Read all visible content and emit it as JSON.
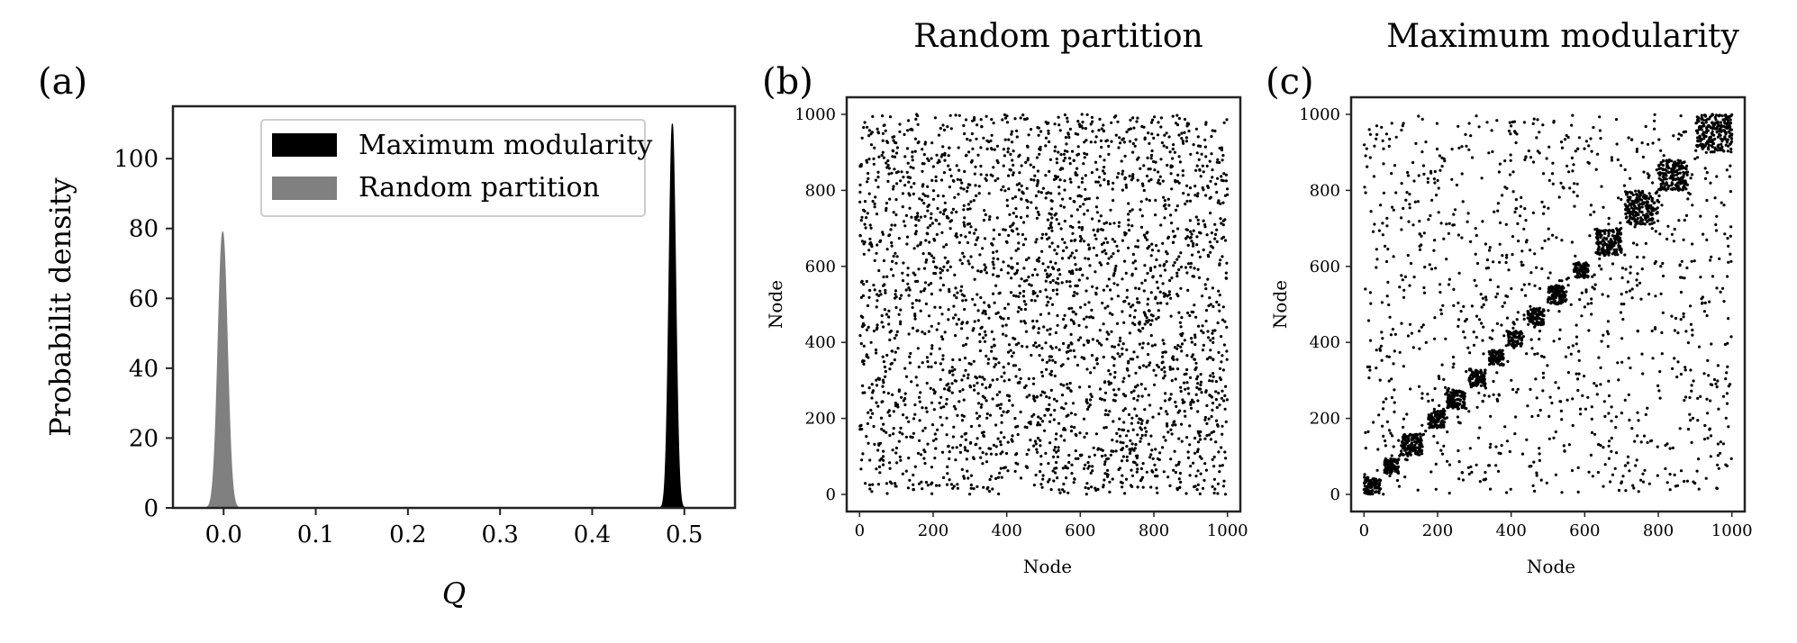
{
  "chart_data": [
    {
      "panel": "(a)",
      "type": "area",
      "title": "",
      "xlabel": "Q",
      "ylabel": "Probabilit density",
      "xlim": [
        -0.055,
        0.555
      ],
      "ylim": [
        0,
        115
      ],
      "xticks": [
        "0.0",
        "0.1",
        "0.2",
        "0.3",
        "0.4",
        "0.5"
      ],
      "xtick_values": [
        0,
        0.1,
        0.2,
        0.3,
        0.4,
        0.5
      ],
      "yticks": [
        "0",
        "20",
        "40",
        "60",
        "80",
        "100"
      ],
      "ytick_values": [
        0,
        20,
        40,
        60,
        80,
        100
      ],
      "legend_position": "top-right",
      "series": [
        {
          "name": "Maximum modularity",
          "color": "#000000",
          "distribution": "gaussian",
          "mean": 0.487,
          "peak": 110,
          "std": 0.0036
        },
        {
          "name": "Random partition",
          "color": "#808080",
          "distribution": "gaussian",
          "mean": -0.001,
          "peak": 79,
          "std": 0.005
        }
      ]
    },
    {
      "panel": "(b)",
      "type": "scatter",
      "title": "Random partition",
      "xlabel": "Node",
      "ylabel": "Node",
      "xlim": [
        -35,
        1035
      ],
      "ylim": [
        -45,
        1045
      ],
      "xticks": [
        "0",
        "200",
        "400",
        "600",
        "800",
        "1000"
      ],
      "xtick_values": [
        0,
        200,
        400,
        600,
        800,
        1000
      ],
      "yticks": [
        "0",
        "200",
        "400",
        "600",
        "800",
        "1000"
      ],
      "ytick_values": [
        0,
        200,
        400,
        600,
        800,
        1000
      ],
      "pattern": "uniform random",
      "node_count": 1000,
      "point_color": "#000000"
    },
    {
      "panel": "(c)",
      "type": "scatter",
      "title": "Maximum modularity",
      "xlabel": "Node",
      "ylabel": "Node",
      "xlim": [
        -35,
        1035
      ],
      "ylim": [
        -45,
        1045
      ],
      "xticks": [
        "0",
        "200",
        "400",
        "600",
        "800",
        "1000"
      ],
      "xtick_values": [
        0,
        200,
        400,
        600,
        800,
        1000
      ],
      "yticks": [
        "0",
        "200",
        "400",
        "600",
        "800",
        "1000"
      ],
      "ytick_values": [
        0,
        200,
        400,
        600,
        800,
        1000
      ],
      "pattern": "diagonal community blocks plus sparse background",
      "point_color": "#000000",
      "communities": [
        {
          "start": 0,
          "end": 45
        },
        {
          "start": 55,
          "end": 95
        },
        {
          "start": 100,
          "end": 160
        },
        {
          "start": 175,
          "end": 220
        },
        {
          "start": 225,
          "end": 275
        },
        {
          "start": 285,
          "end": 330
        },
        {
          "start": 340,
          "end": 380
        },
        {
          "start": 390,
          "end": 430
        },
        {
          "start": 445,
          "end": 490
        },
        {
          "start": 500,
          "end": 550
        },
        {
          "start": 570,
          "end": 610
        },
        {
          "start": 630,
          "end": 700
        },
        {
          "start": 710,
          "end": 800
        },
        {
          "start": 800,
          "end": 880
        },
        {
          "start": 900,
          "end": 1000
        }
      ]
    }
  ]
}
